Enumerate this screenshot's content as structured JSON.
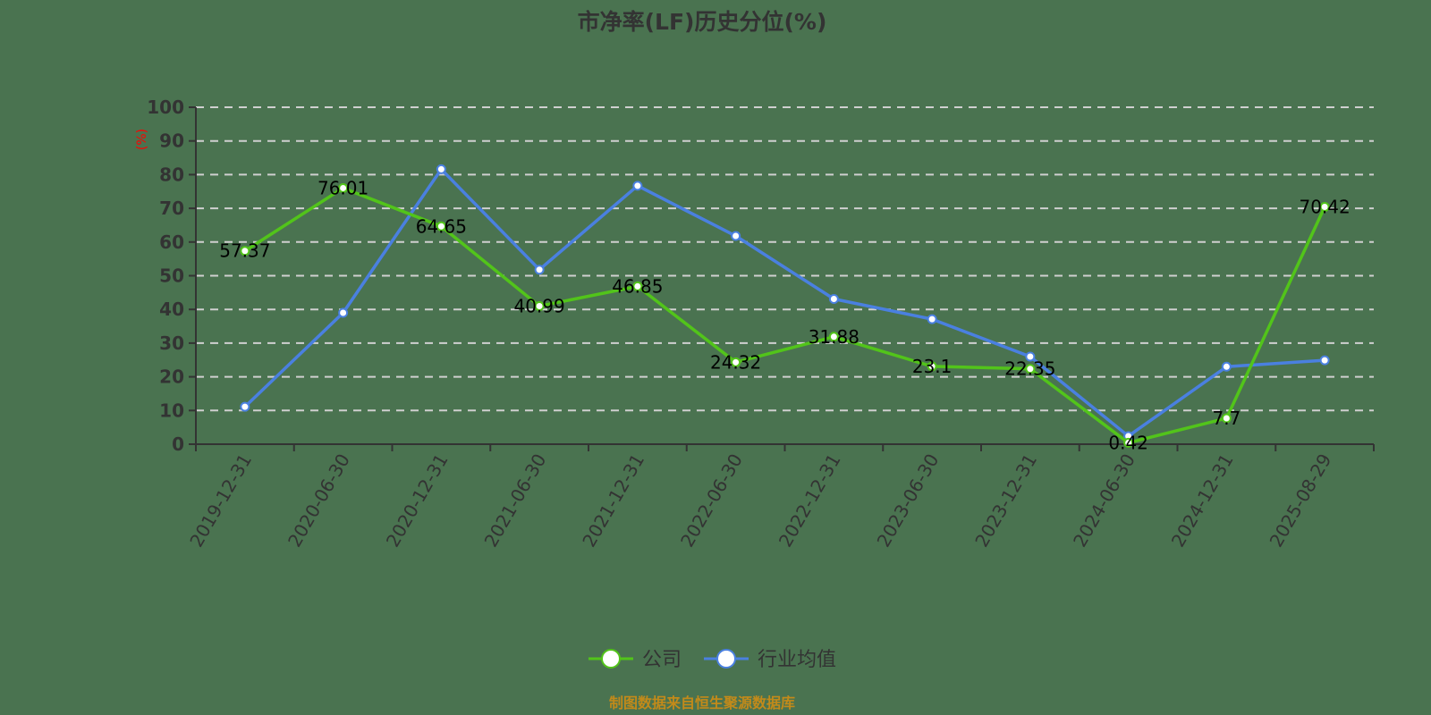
{
  "title": "市净率(LF)历史分位(%)",
  "footer": "制图数据来自恒生聚源数据库",
  "colors": {
    "background": "#4a7350",
    "company": "#52c41a",
    "industry": "#4a80e0",
    "grid": "#d0d0d0",
    "axis": "#333333",
    "unit": "#ff0000",
    "footer": "#c28a1a"
  },
  "legend": [
    {
      "label": "公司",
      "color": "#52c41a"
    },
    {
      "label": "行业均值",
      "color": "#4a80e0"
    }
  ],
  "chart_data": {
    "type": "line",
    "title": "市净率(LF)历史分位(%)",
    "xlabel": "",
    "ylabel": "(%)",
    "ylim": [
      0,
      100
    ],
    "yticks": [
      0,
      10,
      20,
      30,
      40,
      50,
      60,
      70,
      80,
      90,
      100
    ],
    "grid": true,
    "legend_position": "bottom",
    "categories": [
      "2019-12-31",
      "2020-06-30",
      "2020-12-31",
      "2021-06-30",
      "2021-12-31",
      "2022-06-30",
      "2022-12-31",
      "2023-06-30",
      "2023-12-31",
      "2024-06-30",
      "2024-12-31",
      "2025-08-29"
    ],
    "series": [
      {
        "name": "公司",
        "values": [
          57.37,
          76.01,
          64.65,
          40.99,
          46.85,
          24.32,
          31.88,
          23.1,
          22.35,
          0.42,
          7.7,
          70.42
        ],
        "labels": [
          "57.37",
          "76.01",
          "64.65",
          "40.99",
          "46.85",
          "24.32",
          "31.88",
          "23.1",
          "22.35",
          "0.42",
          "7.7",
          "70.42"
        ]
      },
      {
        "name": "行业均值",
        "values": [
          11.1,
          39.0,
          81.6,
          51.8,
          76.7,
          61.8,
          43.1,
          37.1,
          26.0,
          2.4,
          23.0,
          24.9
        ]
      }
    ]
  }
}
